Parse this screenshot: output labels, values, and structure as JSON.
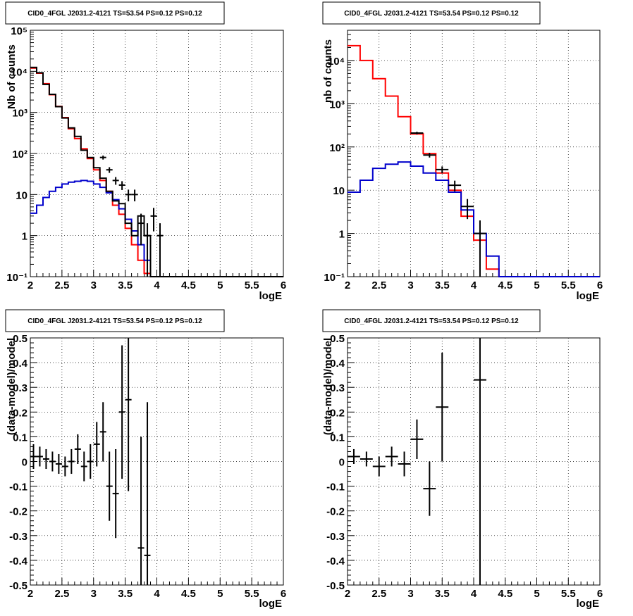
{
  "colors": {
    "red": "#ff0000",
    "blue": "#0000cc",
    "black": "#000000",
    "grid": "#000000",
    "background": "#ffffff"
  },
  "chart_data": [
    {
      "type": "line",
      "title": "CID0_4FGL J2031.2-4121 TS=53.54 PS=0.12 PS=0.12",
      "xlabel": "logE",
      "ylabel": "Nb of counts",
      "xlim": [
        2,
        6
      ],
      "ylim": [
        0.1,
        100000
      ],
      "yscale": "log",
      "xticks": [
        "2",
        "2.5",
        "3",
        "3.5",
        "4",
        "4.5",
        "5",
        "5.5",
        "6"
      ],
      "yticks": [
        "10⁻¹",
        "1",
        "10",
        "10²",
        "10³",
        "10⁴",
        "10⁵"
      ],
      "grid": true,
      "bin_edges": [
        2.0,
        2.1,
        2.2,
        2.3,
        2.4,
        2.5,
        2.6,
        2.7,
        2.8,
        2.9,
        3.0,
        3.1,
        3.2,
        3.3,
        3.4,
        3.5,
        3.6,
        3.7,
        3.8,
        3.9,
        4.0,
        4.1,
        4.2,
        4.3,
        4.4,
        4.5,
        4.6,
        4.7,
        4.8,
        4.9,
        5.0,
        5.1,
        5.2,
        5.3,
        5.4,
        5.5,
        5.6,
        5.7,
        5.8,
        5.9,
        6.0
      ],
      "series": [
        {
          "color": "red",
          "values": [
            12000,
            9000,
            5000,
            2700,
            1400,
            750,
            400,
            230,
            130,
            75,
            40,
            22,
            12,
            5.5,
            3.3,
            1.5,
            0.6,
            0.25,
            0.12,
            0.1,
            0.1,
            0.1,
            0.1,
            0.1,
            0.1,
            0.1,
            0.1,
            0.1,
            0.1,
            0.1,
            0.1,
            0.1,
            0.1,
            0.1,
            0.1,
            0.1,
            0.1,
            0.1,
            0.1,
            0.1
          ]
        },
        {
          "color": "blue",
          "values": [
            3.5,
            5.5,
            8.5,
            12,
            15,
            18,
            20,
            21,
            22,
            21,
            18,
            15,
            11,
            7.5,
            4.5,
            2.5,
            1.3,
            0.6,
            0.25,
            0.1,
            0.1,
            0.1,
            0.1,
            0.1,
            0.1,
            0.1,
            0.1,
            0.1,
            0.1,
            0.1,
            0.1,
            0.1,
            0.1,
            0.1,
            0.1,
            0.1,
            0.1,
            0.1,
            0.1,
            0.1
          ]
        },
        {
          "color": "black",
          "values": [
            12500,
            9200,
            4800,
            2750,
            1380,
            730,
            420,
            260,
            120,
            80,
            45,
            25,
            12,
            7,
            6,
            2,
            1,
            3,
            1,
            0.1,
            0.1,
            0.1,
            0.1,
            0.1,
            0.1,
            0.1,
            0.1,
            0.1,
            0.1,
            0.1,
            0.1,
            0.1,
            0.1,
            0.1,
            0.1,
            0.1,
            0.1,
            0.1,
            0.1,
            0.1
          ]
        }
      ],
      "points": [
        {
          "x": 3.15,
          "y": 80
        },
        {
          "x": 3.25,
          "y": 40
        },
        {
          "x": 3.35,
          "y": 22
        },
        {
          "x": 3.45,
          "y": 17
        },
        {
          "x": 3.55,
          "y": 10
        },
        {
          "x": 3.65,
          "y": 10
        },
        {
          "x": 3.75,
          "y": 2
        },
        {
          "x": 3.85,
          "y": 1
        },
        {
          "x": 3.95,
          "y": 3
        },
        {
          "x": 4.05,
          "y": 1
        }
      ]
    },
    {
      "type": "line",
      "title": "CID0_4FGL J2031.2-4121 TS=53.54 PS=0.12 PS=0.12",
      "xlabel": "logE",
      "ylabel": "nb of counts",
      "xlim": [
        2,
        6
      ],
      "ylim": [
        0.1,
        50000
      ],
      "yscale": "log",
      "xticks": [
        "2",
        "2.5",
        "3",
        "3.5",
        "4",
        "4.5",
        "5",
        "5.5",
        "6"
      ],
      "yticks": [
        "10⁻¹",
        "1",
        "10",
        "10²",
        "10³",
        "10⁴"
      ],
      "grid": true,
      "bin_edges": [
        2.0,
        2.2,
        2.4,
        2.6,
        2.8,
        3.0,
        3.2,
        3.4,
        3.6,
        3.8,
        4.0,
        4.2,
        4.4,
        4.6,
        4.8,
        5.0,
        5.2,
        5.4,
        5.6,
        5.8,
        6.0
      ],
      "series": [
        {
          "color": "red",
          "values": [
            22000,
            10000,
            3800,
            1500,
            500,
            200,
            70,
            25,
            10,
            2.5,
            0.7,
            0.15,
            0.1,
            0.1,
            0.1,
            0.1,
            0.1,
            0.1,
            0.1,
            0.1
          ]
        },
        {
          "color": "blue",
          "values": [
            9,
            17,
            32,
            40,
            45,
            36,
            25,
            17,
            9,
            3.5,
            1.0,
            0.3,
            0.1,
            0.1,
            0.1,
            0.1,
            0.1,
            0.1,
            0.1,
            0.1
          ]
        }
      ],
      "points": [
        {
          "x": 3.1,
          "y": 210
        },
        {
          "x": 3.3,
          "y": 65
        },
        {
          "x": 3.5,
          "y": 30
        },
        {
          "x": 3.7,
          "y": 13
        },
        {
          "x": 3.9,
          "y": 4.2
        },
        {
          "x": 4.1,
          "y": 1.0
        }
      ]
    },
    {
      "type": "scatter",
      "title": "CID0_4FGL J2031.2-4121 TS=53.54 PS=0.12 PS=0.12",
      "xlabel": "logE",
      "ylabel": "(data-model)/model",
      "xlim": [
        2,
        6
      ],
      "ylim": [
        -0.5,
        0.5
      ],
      "xticks": [
        "2",
        "2.5",
        "3",
        "3.5",
        "4",
        "4.5",
        "5",
        "5.5",
        "6"
      ],
      "yticks": [
        "-0.5",
        "-0.4",
        "-0.3",
        "-0.2",
        "-0.1",
        "0",
        "0.1",
        "0.2",
        "0.3",
        "0.4",
        "0.5"
      ],
      "grid": true,
      "points": [
        {
          "x": 2.05,
          "y": 0.02,
          "err": 0.05
        },
        {
          "x": 2.15,
          "y": 0.02,
          "err": 0.04
        },
        {
          "x": 2.25,
          "y": 0.01,
          "err": 0.04
        },
        {
          "x": 2.35,
          "y": 0.0,
          "err": 0.04
        },
        {
          "x": 2.45,
          "y": -0.01,
          "err": 0.04
        },
        {
          "x": 2.55,
          "y": -0.02,
          "err": 0.04
        },
        {
          "x": 2.65,
          "y": 0.0,
          "err": 0.05
        },
        {
          "x": 2.75,
          "y": 0.05,
          "err": 0.06
        },
        {
          "x": 2.85,
          "y": -0.02,
          "err": 0.06
        },
        {
          "x": 2.95,
          "y": 0.0,
          "err": 0.07
        },
        {
          "x": 3.05,
          "y": 0.07,
          "err": 0.09
        },
        {
          "x": 3.15,
          "y": 0.12,
          "err": 0.12
        },
        {
          "x": 3.25,
          "y": -0.1,
          "err": 0.14
        },
        {
          "x": 3.35,
          "y": -0.13,
          "err": 0.18
        },
        {
          "x": 3.45,
          "y": 0.2,
          "err": 0.27
        },
        {
          "x": 3.55,
          "y": 0.25,
          "err": 0.37
        },
        {
          "x": 3.75,
          "y": -0.35,
          "err": 0.45
        },
        {
          "x": 3.85,
          "y": -0.38,
          "err": 0.62
        }
      ]
    },
    {
      "type": "scatter",
      "title": "CID0_4FGL J2031.2-4121 TS=53.54 PS=0.12 PS=0.12",
      "xlabel": "logE",
      "ylabel": "(data-model)/model",
      "xlim": [
        2,
        6
      ],
      "ylim": [
        -0.5,
        0.5
      ],
      "xticks": [
        "2",
        "2.5",
        "3",
        "3.5",
        "4",
        "4.5",
        "5",
        "5.5",
        "6"
      ],
      "yticks": [
        "-0.5",
        "-0.4",
        "-0.3",
        "-0.2",
        "-0.1",
        "0",
        "0.1",
        "0.2",
        "0.3",
        "0.4",
        "0.5"
      ],
      "grid": true,
      "points": [
        {
          "x": 2.1,
          "y": 0.02,
          "err": 0.03
        },
        {
          "x": 2.3,
          "y": 0.01,
          "err": 0.03
        },
        {
          "x": 2.5,
          "y": -0.02,
          "err": 0.04
        },
        {
          "x": 2.7,
          "y": 0.02,
          "err": 0.04
        },
        {
          "x": 2.9,
          "y": -0.01,
          "err": 0.05
        },
        {
          "x": 3.1,
          "y": 0.09,
          "err": 0.08
        },
        {
          "x": 3.3,
          "y": -0.11,
          "err": 0.11
        },
        {
          "x": 3.5,
          "y": 0.22,
          "err": 0.22
        },
        {
          "x": 4.1,
          "y": 0.33,
          "err": 0.83
        }
      ]
    }
  ]
}
